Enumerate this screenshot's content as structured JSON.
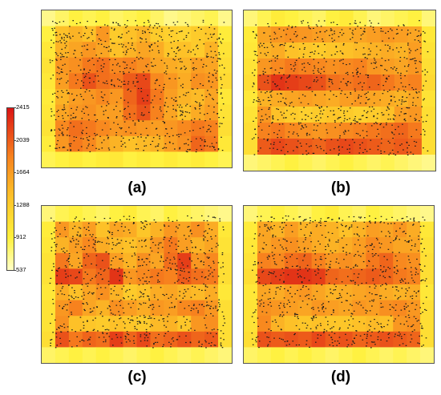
{
  "chart_data": [
    {
      "type": "heatmap",
      "panel": "(a)",
      "title": "",
      "rows": [
        [
          700,
          800,
          900,
          850,
          900,
          800,
          850,
          900,
          800,
          700,
          750,
          800,
          850,
          700
        ],
        [
          900,
          1400,
          1500,
          1400,
          1700,
          1300,
          1400,
          1500,
          1300,
          1250,
          1200,
          1300,
          1350,
          950
        ],
        [
          1000,
          1500,
          1600,
          1700,
          1600,
          1400,
          1500,
          1600,
          1550,
          1350,
          1400,
          1300,
          1500,
          1050
        ],
        [
          1050,
          1700,
          1750,
          1900,
          1950,
          1800,
          1850,
          1750,
          1600,
          1550,
          1500,
          1650,
          1600,
          1100
        ],
        [
          1000,
          1650,
          1900,
          2100,
          1950,
          1900,
          2050,
          2150,
          1800,
          1700,
          1550,
          1750,
          1700,
          1150
        ],
        [
          950,
          1500,
          1650,
          1700,
          1800,
          1700,
          2000,
          2200,
          1900,
          1650,
          1500,
          1450,
          1600,
          1000
        ],
        [
          1000,
          1600,
          1700,
          1750,
          1650,
          1650,
          1950,
          2100,
          1850,
          1600,
          1400,
          1550,
          1650,
          1050
        ],
        [
          1050,
          1800,
          1950,
          1900,
          1800,
          1700,
          1750,
          1700,
          1650,
          1700,
          1800,
          1900,
          1850,
          1100
        ],
        [
          950,
          1700,
          1900,
          1800,
          1600,
          1500,
          1400,
          1450,
          1500,
          1650,
          1750,
          2000,
          1900,
          1000
        ],
        [
          850,
          900,
          950,
          900,
          950,
          1000,
          900,
          950,
          900,
          950,
          900,
          950,
          900,
          850
        ]
      ],
      "scale": {
        "min": 537,
        "max": 2415
      }
    },
    {
      "type": "heatmap",
      "panel": "(b)",
      "title": "",
      "rows": [
        [
          750,
          850,
          950,
          900,
          850,
          800,
          900,
          950,
          850,
          750,
          800,
          850,
          900,
          750
        ],
        [
          950,
          1600,
          1700,
          1750,
          1700,
          1650,
          1600,
          1550,
          1600,
          1650,
          1700,
          1650,
          1600,
          1000
        ],
        [
          1000,
          1500,
          1550,
          1400,
          1350,
          1300,
          1350,
          1400,
          1450,
          1500,
          1550,
          1500,
          1650,
          1050
        ],
        [
          1050,
          1700,
          1800,
          1900,
          1850,
          1800,
          1750,
          1800,
          1850,
          1700,
          1650,
          1600,
          1700,
          1100
        ],
        [
          1100,
          2100,
          2250,
          2200,
          2150,
          2100,
          1950,
          1900,
          1950,
          2000,
          1900,
          1800,
          1850,
          1150
        ],
        [
          1000,
          1500,
          1550,
          1600,
          1650,
          1600,
          1550,
          1650,
          1700,
          1600,
          1550,
          1500,
          1600,
          1050
        ],
        [
          1050,
          1700,
          1400,
          1300,
          1250,
          1300,
          1350,
          1300,
          1250,
          1300,
          1400,
          1650,
          1700,
          1100
        ],
        [
          1100,
          1850,
          1900,
          1800,
          1750,
          1700,
          1750,
          1800,
          1850,
          1900,
          1950,
          2000,
          1900,
          1100
        ],
        [
          1100,
          2050,
          2150,
          2100,
          2050,
          2000,
          2100,
          2150,
          2100,
          2050,
          2000,
          2050,
          2000,
          1100
        ],
        [
          750,
          800,
          850,
          900,
          850,
          800,
          850,
          900,
          850,
          800,
          850,
          800,
          750,
          700
        ]
      ],
      "scale": {
        "min": 537,
        "max": 2415
      }
    },
    {
      "type": "heatmap",
      "panel": "(c)",
      "title": "",
      "rows": [
        [
          750,
          850,
          900,
          850,
          800,
          900,
          950,
          850,
          800,
          900,
          850,
          800,
          750,
          700
        ],
        [
          950,
          1700,
          1500,
          1650,
          1400,
          1600,
          1550,
          1350,
          1500,
          1700,
          1600,
          1750,
          1550,
          1000
        ],
        [
          1000,
          1500,
          1650,
          1800,
          1550,
          1450,
          1400,
          1500,
          1700,
          1900,
          1650,
          1500,
          1600,
          1050
        ],
        [
          1050,
          1900,
          1600,
          2000,
          2100,
          1650,
          1500,
          1750,
          1600,
          1950,
          2200,
          1700,
          1800,
          1100
        ],
        [
          1050,
          2200,
          2150,
          1900,
          2000,
          2250,
          1700,
          1800,
          1900,
          1850,
          2050,
          1950,
          1900,
          1100
        ],
        [
          1000,
          1550,
          1400,
          1600,
          1750,
          1500,
          1300,
          1400,
          1550,
          1600,
          1500,
          1450,
          1550,
          1000
        ],
        [
          1050,
          1700,
          1850,
          1600,
          1500,
          1750,
          1650,
          1550,
          1700,
          1650,
          1800,
          1850,
          1700,
          1100
        ],
        [
          1050,
          1750,
          1400,
          1350,
          1300,
          1400,
          1350,
          1300,
          1450,
          1500,
          1350,
          1700,
          1750,
          1100
        ],
        [
          1100,
          2100,
          1900,
          2000,
          1950,
          2200,
          2000,
          2150,
          1950,
          2000,
          2100,
          2000,
          2050,
          1100
        ],
        [
          800,
          850,
          900,
          850,
          900,
          850,
          800,
          850,
          900,
          850,
          800,
          850,
          800,
          750
        ]
      ],
      "scale": {
        "min": 537,
        "max": 2415
      }
    },
    {
      "type": "heatmap",
      "panel": "(d)",
      "title": "",
      "rows": [
        [
          750,
          850,
          900,
          850,
          800,
          900,
          950,
          850,
          800,
          900,
          850,
          800,
          750,
          700
        ],
        [
          950,
          1600,
          1500,
          1650,
          1500,
          1550,
          1500,
          1400,
          1500,
          1650,
          1600,
          1700,
          1550,
          1000
        ],
        [
          1000,
          1600,
          1700,
          1750,
          1650,
          1550,
          1500,
          1550,
          1650,
          1800,
          1700,
          1600,
          1600,
          1050
        ],
        [
          1050,
          1850,
          1800,
          1950,
          2000,
          1850,
          1700,
          1750,
          1700,
          1900,
          2000,
          1800,
          1750,
          1100
        ],
        [
          1100,
          2150,
          2200,
          2250,
          2250,
          2200,
          2000,
          1950,
          2000,
          2050,
          2000,
          1900,
          1850,
          1100
        ],
        [
          1000,
          1600,
          1550,
          1650,
          1700,
          1600,
          1500,
          1550,
          1600,
          1650,
          1550,
          1500,
          1550,
          1000
        ],
        [
          1050,
          1750,
          1700,
          1650,
          1600,
          1700,
          1650,
          1600,
          1700,
          1650,
          1750,
          1800,
          1700,
          1100
        ],
        [
          1050,
          1800,
          1500,
          1400,
          1350,
          1400,
          1350,
          1350,
          1400,
          1450,
          1400,
          1700,
          1750,
          1100
        ],
        [
          1100,
          2100,
          2050,
          2100,
          2050,
          2150,
          2050,
          2100,
          2000,
          2050,
          2100,
          2050,
          2000,
          1100
        ],
        [
          800,
          850,
          900,
          850,
          900,
          850,
          800,
          850,
          900,
          850,
          800,
          850,
          800,
          750
        ]
      ],
      "scale": {
        "min": 537,
        "max": 2415
      }
    }
  ],
  "colorbar": {
    "ticks": [
      "2415",
      "2039",
      "1664",
      "1288",
      "912",
      "537"
    ],
    "min": 537,
    "max": 2415
  },
  "panel_labels": [
    "(a)",
    "(b)",
    "(c)",
    "(d)"
  ]
}
